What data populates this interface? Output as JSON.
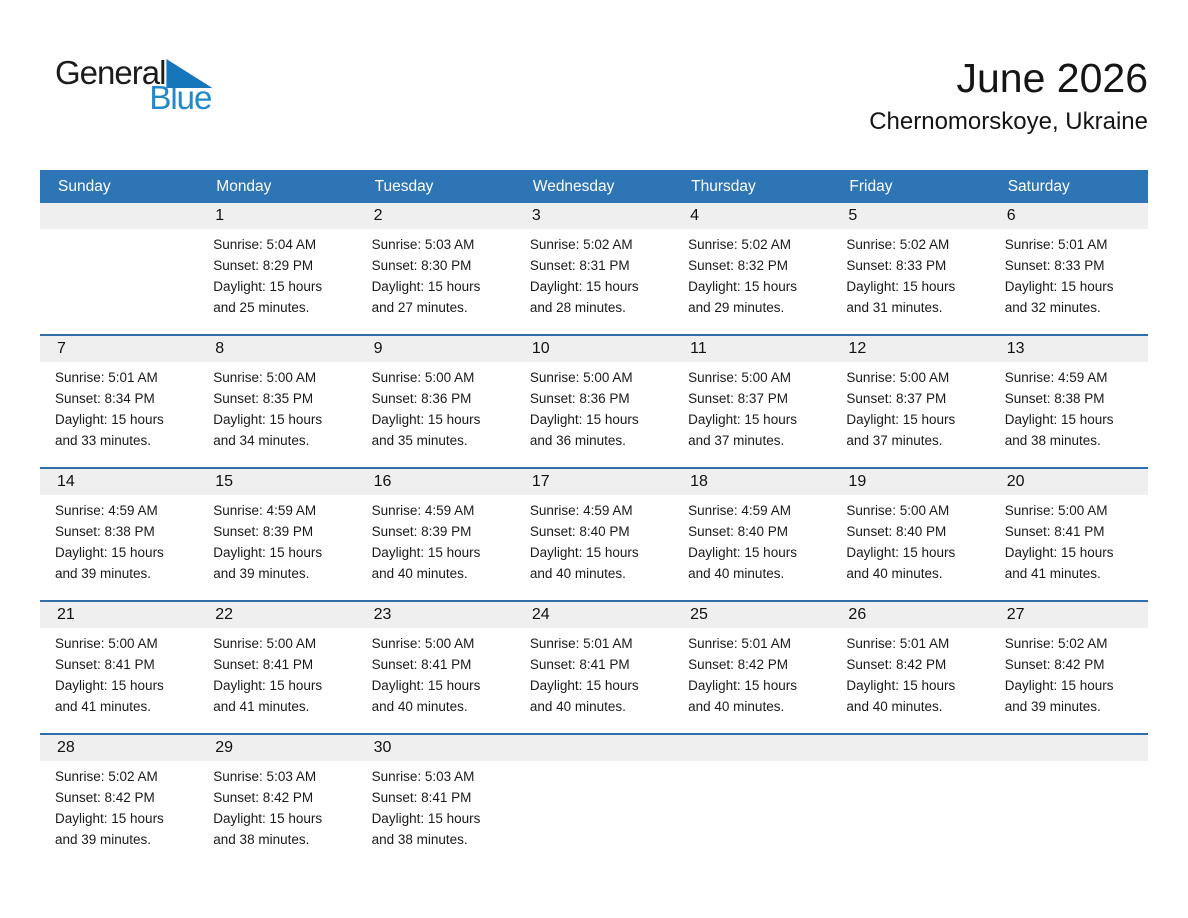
{
  "logo": {
    "text_general": "General",
    "text_blue": "Blue",
    "triangle_icon": "blue-triangle"
  },
  "header": {
    "title": "June 2026",
    "location": "Chernomorskoye, Ukraine"
  },
  "colors": {
    "header_bg": "#2e75b6",
    "header_text": "#ffffff",
    "row_border": "#2f6ea8",
    "day_band_bg": "#efefef",
    "logo_blue": "#2089cb",
    "triangle_blue": "#1576bc"
  },
  "weekdays": [
    "Sunday",
    "Monday",
    "Tuesday",
    "Wednesday",
    "Thursday",
    "Friday",
    "Saturday"
  ],
  "weeks": [
    [
      {
        "day": "",
        "lines": []
      },
      {
        "day": "1",
        "lines": [
          "Sunrise: 5:04 AM",
          "Sunset: 8:29 PM",
          "Daylight: 15 hours",
          "and 25 minutes."
        ]
      },
      {
        "day": "2",
        "lines": [
          "Sunrise: 5:03 AM",
          "Sunset: 8:30 PM",
          "Daylight: 15 hours",
          "and 27 minutes."
        ]
      },
      {
        "day": "3",
        "lines": [
          "Sunrise: 5:02 AM",
          "Sunset: 8:31 PM",
          "Daylight: 15 hours",
          "and 28 minutes."
        ]
      },
      {
        "day": "4",
        "lines": [
          "Sunrise: 5:02 AM",
          "Sunset: 8:32 PM",
          "Daylight: 15 hours",
          "and 29 minutes."
        ]
      },
      {
        "day": "5",
        "lines": [
          "Sunrise: 5:02 AM",
          "Sunset: 8:33 PM",
          "Daylight: 15 hours",
          "and 31 minutes."
        ]
      },
      {
        "day": "6",
        "lines": [
          "Sunrise: 5:01 AM",
          "Sunset: 8:33 PM",
          "Daylight: 15 hours",
          "and 32 minutes."
        ]
      }
    ],
    [
      {
        "day": "7",
        "lines": [
          "Sunrise: 5:01 AM",
          "Sunset: 8:34 PM",
          "Daylight: 15 hours",
          "and 33 minutes."
        ]
      },
      {
        "day": "8",
        "lines": [
          "Sunrise: 5:00 AM",
          "Sunset: 8:35 PM",
          "Daylight: 15 hours",
          "and 34 minutes."
        ]
      },
      {
        "day": "9",
        "lines": [
          "Sunrise: 5:00 AM",
          "Sunset: 8:36 PM",
          "Daylight: 15 hours",
          "and 35 minutes."
        ]
      },
      {
        "day": "10",
        "lines": [
          "Sunrise: 5:00 AM",
          "Sunset: 8:36 PM",
          "Daylight: 15 hours",
          "and 36 minutes."
        ]
      },
      {
        "day": "11",
        "lines": [
          "Sunrise: 5:00 AM",
          "Sunset: 8:37 PM",
          "Daylight: 15 hours",
          "and 37 minutes."
        ]
      },
      {
        "day": "12",
        "lines": [
          "Sunrise: 5:00 AM",
          "Sunset: 8:37 PM",
          "Daylight: 15 hours",
          "and 37 minutes."
        ]
      },
      {
        "day": "13",
        "lines": [
          "Sunrise: 4:59 AM",
          "Sunset: 8:38 PM",
          "Daylight: 15 hours",
          "and 38 minutes."
        ]
      }
    ],
    [
      {
        "day": "14",
        "lines": [
          "Sunrise: 4:59 AM",
          "Sunset: 8:38 PM",
          "Daylight: 15 hours",
          "and 39 minutes."
        ]
      },
      {
        "day": "15",
        "lines": [
          "Sunrise: 4:59 AM",
          "Sunset: 8:39 PM",
          "Daylight: 15 hours",
          "and 39 minutes."
        ]
      },
      {
        "day": "16",
        "lines": [
          "Sunrise: 4:59 AM",
          "Sunset: 8:39 PM",
          "Daylight: 15 hours",
          "and 40 minutes."
        ]
      },
      {
        "day": "17",
        "lines": [
          "Sunrise: 4:59 AM",
          "Sunset: 8:40 PM",
          "Daylight: 15 hours",
          "and 40 minutes."
        ]
      },
      {
        "day": "18",
        "lines": [
          "Sunrise: 4:59 AM",
          "Sunset: 8:40 PM",
          "Daylight: 15 hours",
          "and 40 minutes."
        ]
      },
      {
        "day": "19",
        "lines": [
          "Sunrise: 5:00 AM",
          "Sunset: 8:40 PM",
          "Daylight: 15 hours",
          "and 40 minutes."
        ]
      },
      {
        "day": "20",
        "lines": [
          "Sunrise: 5:00 AM",
          "Sunset: 8:41 PM",
          "Daylight: 15 hours",
          "and 41 minutes."
        ]
      }
    ],
    [
      {
        "day": "21",
        "lines": [
          "Sunrise: 5:00 AM",
          "Sunset: 8:41 PM",
          "Daylight: 15 hours",
          "and 41 minutes."
        ]
      },
      {
        "day": "22",
        "lines": [
          "Sunrise: 5:00 AM",
          "Sunset: 8:41 PM",
          "Daylight: 15 hours",
          "and 41 minutes."
        ]
      },
      {
        "day": "23",
        "lines": [
          "Sunrise: 5:00 AM",
          "Sunset: 8:41 PM",
          "Daylight: 15 hours",
          "and 40 minutes."
        ]
      },
      {
        "day": "24",
        "lines": [
          "Sunrise: 5:01 AM",
          "Sunset: 8:41 PM",
          "Daylight: 15 hours",
          "and 40 minutes."
        ]
      },
      {
        "day": "25",
        "lines": [
          "Sunrise: 5:01 AM",
          "Sunset: 8:42 PM",
          "Daylight: 15 hours",
          "and 40 minutes."
        ]
      },
      {
        "day": "26",
        "lines": [
          "Sunrise: 5:01 AM",
          "Sunset: 8:42 PM",
          "Daylight: 15 hours",
          "and 40 minutes."
        ]
      },
      {
        "day": "27",
        "lines": [
          "Sunrise: 5:02 AM",
          "Sunset: 8:42 PM",
          "Daylight: 15 hours",
          "and 39 minutes."
        ]
      }
    ],
    [
      {
        "day": "28",
        "lines": [
          "Sunrise: 5:02 AM",
          "Sunset: 8:42 PM",
          "Daylight: 15 hours",
          "and 39 minutes."
        ]
      },
      {
        "day": "29",
        "lines": [
          "Sunrise: 5:03 AM",
          "Sunset: 8:42 PM",
          "Daylight: 15 hours",
          "and 38 minutes."
        ]
      },
      {
        "day": "30",
        "lines": [
          "Sunrise: 5:03 AM",
          "Sunset: 8:41 PM",
          "Daylight: 15 hours",
          "and 38 minutes."
        ]
      },
      {
        "day": "",
        "lines": []
      },
      {
        "day": "",
        "lines": []
      },
      {
        "day": "",
        "lines": []
      },
      {
        "day": "",
        "lines": []
      }
    ]
  ]
}
